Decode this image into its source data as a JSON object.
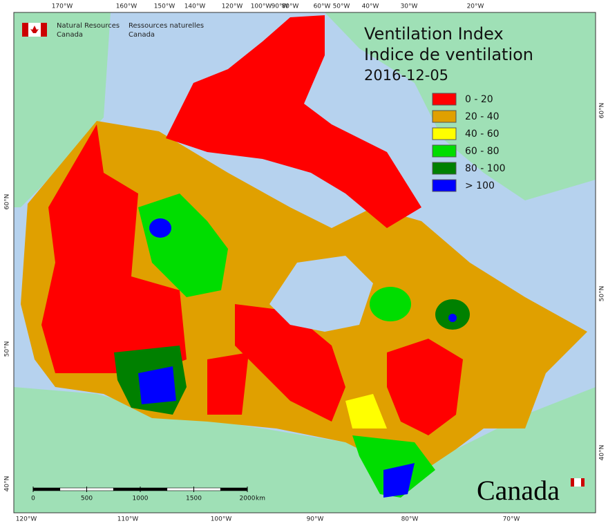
{
  "header": {
    "org_en": [
      "Natural Resources",
      "Canada"
    ],
    "org_fr": [
      "Ressources naturelles",
      "Canada"
    ]
  },
  "title": [
    "Ventilation Index",
    "Indice de ventilation",
    "2016-12-05"
  ],
  "legend": [
    {
      "label": "0 - 20",
      "color": "#ff0000"
    },
    {
      "label": "20 - 40",
      "color": "#e0a000"
    },
    {
      "label": "40 - 60",
      "color": "#ffff00"
    },
    {
      "label": "60 - 80",
      "color": "#00dd00"
    },
    {
      "label": "80 - 100",
      "color": "#008000"
    },
    {
      "label": "> 100",
      "color": "#0000ff"
    }
  ],
  "top_labels": [
    "170°W",
    "160°W",
    "150°W",
    "140°W",
    "120°W",
    "100°W",
    "90°W",
    "80°W",
    "60°W",
    "50°W",
    "40°W",
    "30°W",
    "20°W"
  ],
  "bottom_labels": [
    "120°W",
    "110°W",
    "100°W",
    "90°W",
    "80°W",
    "70°W"
  ],
  "left_labels": [
    "60°N",
    "50°N",
    "40°N"
  ],
  "right_labels": [
    "60°N",
    "50°N",
    "40°N"
  ],
  "scale": {
    "ticks": [
      0,
      500,
      1000,
      1500,
      2000
    ],
    "unit": "km"
  },
  "wordmark": "Canada"
}
